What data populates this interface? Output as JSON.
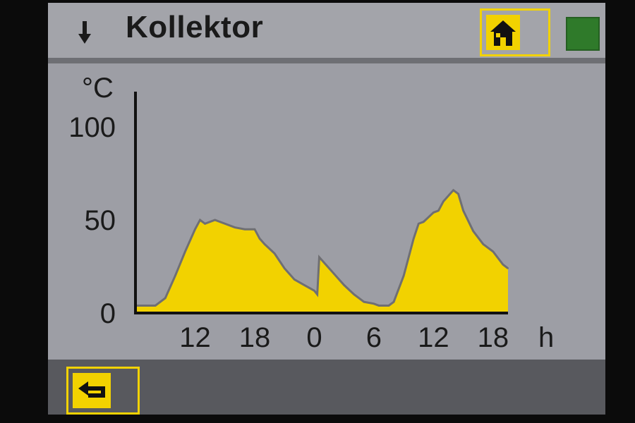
{
  "header": {
    "title": "Kollektor",
    "arrow_icon": "down-arrow-icon",
    "home_icon": "home-icon",
    "status_color": "#2f7a2a"
  },
  "footer": {
    "back_icon": "back-arrow-icon"
  },
  "colors": {
    "fill": "#f2d200",
    "line": "#6f6f73",
    "background": "#9d9ea5"
  },
  "chart_data": {
    "type": "area",
    "ylabel": "°C",
    "xlabel": "h",
    "ylim": [
      0,
      100
    ],
    "yticks": [
      0,
      50,
      100
    ],
    "xlim": [
      6,
      43.5
    ],
    "xticks": [
      12,
      18,
      24,
      30,
      36,
      42
    ],
    "xtick_labels": [
      "12",
      "18",
      "0",
      "6",
      "12",
      "18"
    ],
    "grid": false,
    "series": [
      {
        "x": [
          6,
          8,
          9,
          10,
          11,
          12,
          12.5,
          13,
          14,
          15,
          16,
          17,
          18,
          18.5,
          19,
          20,
          21,
          22,
          23,
          24,
          24.3,
          24.5,
          25,
          26,
          27,
          28,
          29,
          30,
          30.5,
          31,
          31.5,
          32,
          33,
          34,
          34.5,
          35,
          36,
          36.5,
          37,
          38,
          38.5,
          39,
          40,
          41,
          42,
          43,
          43.5
        ],
        "y": [
          4,
          4,
          8,
          20,
          33,
          45,
          50,
          48,
          50,
          48,
          46,
          45,
          45,
          40,
          37,
          32,
          24,
          18,
          15,
          12,
          10,
          30,
          27,
          21,
          15,
          10,
          6,
          5,
          4,
          4,
          4,
          6,
          20,
          40,
          48,
          49,
          54,
          55,
          60,
          66,
          64,
          55,
          44,
          37,
          33,
          26,
          24
        ]
      }
    ]
  }
}
